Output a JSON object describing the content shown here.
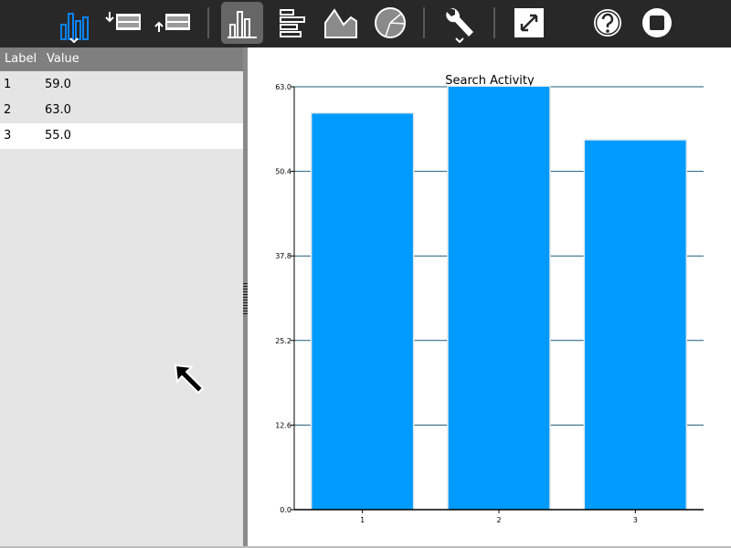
{
  "toolbar": {
    "buttons": [
      {
        "name": "chart-activity-button",
        "icon": "bar-chart-icon"
      },
      {
        "name": "add-row-button",
        "icon": "add-row-icon"
      },
      {
        "name": "remove-row-button",
        "icon": "remove-row-icon"
      },
      {
        "name": "bar-chart-button",
        "icon": "vertical-bar-chart-icon"
      },
      {
        "name": "horizontal-bar-chart-button",
        "icon": "horizontal-bar-chart-icon"
      },
      {
        "name": "area-chart-button",
        "icon": "area-chart-icon"
      },
      {
        "name": "pie-chart-button",
        "icon": "pie-chart-icon"
      },
      {
        "name": "settings-button",
        "icon": "wrench-icon"
      },
      {
        "name": "fullscreen-button",
        "icon": "fullscreen-icon"
      },
      {
        "name": "help-button",
        "icon": "help-icon"
      },
      {
        "name": "stop-button",
        "icon": "stop-icon"
      }
    ],
    "colors": {
      "background": "#282828",
      "active": "#666666",
      "accent": "#0a84ff"
    }
  },
  "table": {
    "headers": {
      "label": "Label",
      "value": "Value"
    },
    "rows": [
      {
        "label": "1",
        "value": "59.0"
      },
      {
        "label": "2",
        "value": "63.0"
      },
      {
        "label": "3",
        "value": "55.0"
      }
    ],
    "selected_row": 3
  },
  "chart_data": {
    "type": "bar",
    "title": "Search Activity",
    "categories": [
      "1",
      "2",
      "3"
    ],
    "values": [
      59.0,
      63.0,
      55.0
    ],
    "ylim": [
      0,
      63.0
    ],
    "yticks": [
      "0.0",
      "12.6",
      "25.2",
      "37.8",
      "50.4",
      "63.0"
    ],
    "xlabel": "",
    "ylabel": "",
    "grid": true,
    "bar_color": "#009bff",
    "grid_color": "#1d5c7a"
  }
}
